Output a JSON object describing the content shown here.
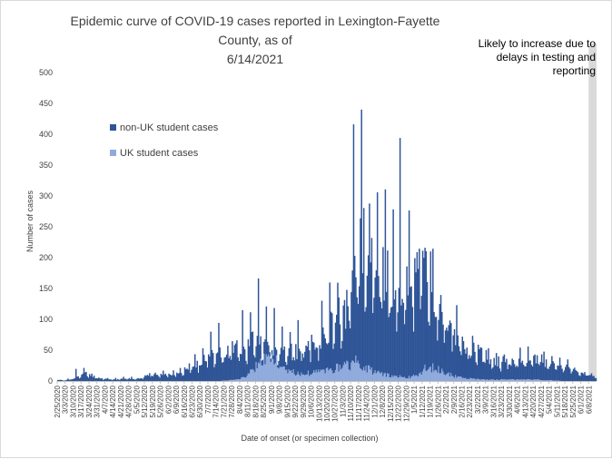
{
  "chart_data": {
    "type": "bar",
    "stacked": true,
    "title_line1": "Epidemic curve of COVID-19 cases reported in Lexington-Fayette County, as of",
    "title_line2": "6/14/2021",
    "xlabel": "Date of onset (or specimen collection)",
    "ylabel": "Number of cases",
    "ylim": [
      0,
      500
    ],
    "yticks": [
      0,
      50,
      100,
      150,
      200,
      250,
      300,
      350,
      400,
      450,
      500
    ],
    "grid": false,
    "legend_position": "left",
    "x_start": "2/25/2020",
    "x_end": "6/14/2021",
    "x_tick_labels": [
      "2/25/2020",
      "3/3/2020",
      "3/10/2020",
      "3/17/2020",
      "3/24/2020",
      "3/31/2020",
      "4/7/2020",
      "4/14/2020",
      "4/21/2020",
      "4/28/2020",
      "5/5/2020",
      "5/12/2020",
      "5/19/2020",
      "5/26/2020",
      "6/2/2020",
      "6/9/2020",
      "6/16/2020",
      "6/23/2020",
      "6/30/2020",
      "7/7/2020",
      "7/14/2020",
      "7/21/2020",
      "7/28/2020",
      "8/4/2020",
      "8/11/2020",
      "8/18/2020",
      "8/25/2020",
      "9/1/2020",
      "9/8/2020",
      "9/15/2020",
      "9/22/2020",
      "9/29/2020",
      "10/6/2020",
      "10/13/2020",
      "10/20/2020",
      "10/27/2020",
      "11/3/2020",
      "11/10/2020",
      "11/17/2020",
      "11/24/2020",
      "12/1/2020",
      "12/8/2020",
      "12/15/2020",
      "12/22/2020",
      "12/29/2020",
      "1/5/2021",
      "1/12/2021",
      "1/19/2021",
      "1/26/2021",
      "2/2/2021",
      "2/9/2021",
      "2/16/2021",
      "2/23/2021",
      "3/2/2021",
      "3/9/2021",
      "3/16/2021",
      "3/23/2021",
      "3/30/2021",
      "4/6/2021",
      "4/13/2021",
      "4/20/2021",
      "4/27/2021",
      "5/4/2021",
      "5/11/2021",
      "5/18/2021",
      "5/25/2021",
      "6/1/2021",
      "6/8/2021"
    ],
    "series": [
      {
        "name": "non-UK student cases",
        "color": "#2f5597",
        "weekly_avg_total": [
          1,
          2,
          8,
          14,
          8,
          4,
          3,
          3,
          4,
          4,
          5,
          12,
          10,
          10,
          14,
          18,
          24,
          28,
          38,
          48,
          52,
          54,
          56,
          60,
          68,
          62,
          60,
          56,
          48,
          50,
          55,
          60,
          70,
          82,
          96,
          112,
          130,
          170,
          240,
          210,
          180,
          190,
          170,
          160,
          150,
          175,
          185,
          160,
          130,
          100,
          80,
          60,
          52,
          45,
          38,
          34,
          32,
          34,
          36,
          36,
          40,
          34,
          30,
          26,
          22,
          18,
          14,
          8
        ],
        "weekly_max_total": [
          2,
          4,
          22,
          22,
          12,
          6,
          5,
          6,
          7,
          8,
          10,
          75,
          16,
          18,
          22,
          28,
          40,
          45,
          60,
          80,
          95,
          88,
          100,
          130,
          112,
          180,
          140,
          120,
          92,
          88,
          110,
          102,
          126,
          150,
          160,
          175,
          212,
          420,
          440,
          300,
          320,
          360,
          300,
          390,
          280,
          245,
          260,
          230,
          180,
          150,
          130,
          95,
          80,
          72,
          62,
          55,
          52,
          55,
          60,
          58,
          55,
          50,
          44,
          40,
          35,
          30,
          22,
          14
        ]
      },
      {
        "name": "UK student cases",
        "color": "#8faadc",
        "weekly_avg": [
          0,
          0,
          0,
          0,
          0,
          0,
          0,
          0,
          0,
          0,
          0,
          0,
          0,
          0,
          0,
          0,
          0,
          0,
          0,
          0,
          0,
          1,
          2,
          6,
          16,
          34,
          44,
          34,
          20,
          14,
          12,
          12,
          14,
          16,
          18,
          22,
          26,
          30,
          24,
          16,
          12,
          10,
          8,
          6,
          6,
          10,
          22,
          22,
          16,
          10,
          6,
          4,
          3,
          2,
          2,
          2,
          3,
          2,
          2,
          2,
          2,
          1,
          1,
          0,
          0,
          0,
          0,
          0
        ]
      }
    ],
    "peak": {
      "date": "11/19/2020",
      "value": 440
    },
    "secondary_peak": {
      "date": "12/23/2020",
      "value": 394
    },
    "annotation": "Likely to increase due to delays in testing and reporting",
    "annotation_range": [
      "6/8/2021",
      "6/14/2021"
    ]
  }
}
